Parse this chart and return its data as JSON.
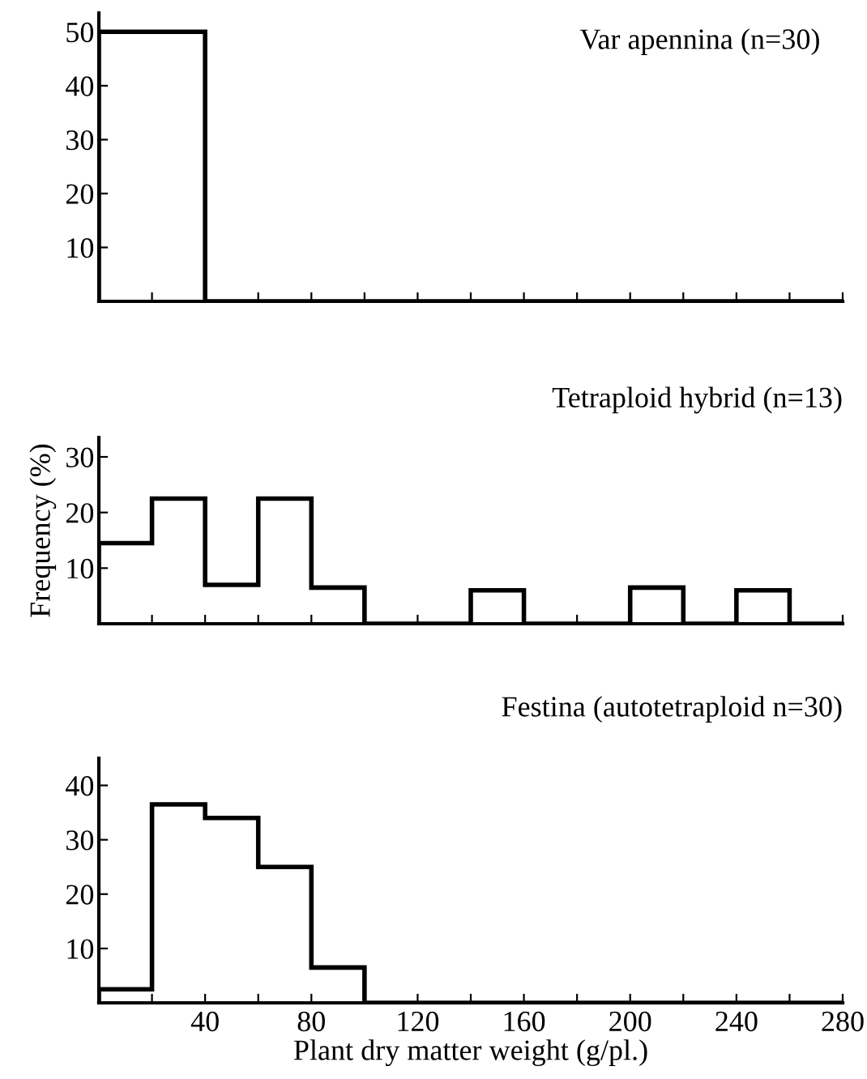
{
  "chart_data": [
    {
      "type": "histogram",
      "title": "Var apennina (n=30)",
      "bins": [
        0,
        20,
        40,
        60,
        80,
        100,
        120,
        140,
        160,
        180,
        200,
        220,
        240,
        260,
        280
      ],
      "values": [
        50,
        50,
        0,
        0,
        0,
        0,
        0,
        0,
        0,
        0,
        0,
        0,
        0,
        0
      ],
      "color": "#000000",
      "xlim": [
        0,
        280
      ],
      "ylim": [
        0,
        53.5
      ],
      "yticks": [
        10,
        20,
        30,
        40,
        50
      ],
      "xticks": [
        {
          "value": 20,
          "label": null
        },
        {
          "value": 40,
          "label": null
        },
        {
          "value": 60,
          "label": null
        },
        {
          "value": 80,
          "label": null
        },
        {
          "value": 100,
          "label": null
        },
        {
          "value": 120,
          "label": null
        },
        {
          "value": 140,
          "label": null
        },
        {
          "value": 160,
          "label": null
        },
        {
          "value": 180,
          "label": null
        },
        {
          "value": 200,
          "label": null
        },
        {
          "value": 220,
          "label": null
        },
        {
          "value": 240,
          "label": null
        },
        {
          "value": 260,
          "label": null
        },
        {
          "value": 280,
          "label": null
        }
      ],
      "tick_labels": "y"
    },
    {
      "type": "histogram",
      "title": "Tetraploid hybrid (n=13)",
      "ylabel": "Frequency (%)",
      "bins": [
        0,
        20,
        40,
        60,
        80,
        100,
        120,
        140,
        160,
        180,
        200,
        220,
        240,
        260,
        280
      ],
      "values": [
        14.5,
        22.5,
        7,
        22.5,
        6.5,
        0,
        0,
        6,
        0,
        0,
        6.5,
        0,
        6,
        0
      ],
      "color": "#000000",
      "xlim": [
        0,
        280
      ],
      "ylim": [
        0,
        33.5
      ],
      "yticks": [
        10,
        20,
        30
      ],
      "xticks": [
        {
          "value": 20,
          "label": null
        },
        {
          "value": 40,
          "label": null
        },
        {
          "value": 60,
          "label": null
        },
        {
          "value": 80,
          "label": null
        },
        {
          "value": 100,
          "label": null
        },
        {
          "value": 120,
          "label": null
        },
        {
          "value": 140,
          "label": null
        },
        {
          "value": 160,
          "label": null
        },
        {
          "value": 180,
          "label": null
        },
        {
          "value": 200,
          "label": null
        },
        {
          "value": 220,
          "label": null
        },
        {
          "value": 240,
          "label": null
        },
        {
          "value": 260,
          "label": null
        },
        {
          "value": 280,
          "label": null
        }
      ],
      "tick_labels": "y"
    },
    {
      "type": "histogram",
      "title": "Festina (autotetraploid n=30)",
      "xlabel": "Plant dry matter weight (g/pl.)",
      "bins": [
        0,
        20,
        40,
        60,
        80,
        100,
        120,
        140,
        160,
        180,
        200,
        220,
        240,
        260,
        280
      ],
      "values": [
        2.5,
        36.5,
        34,
        25,
        6.5,
        0,
        0,
        0,
        0,
        0,
        0,
        0,
        0,
        0
      ],
      "color": "#000000",
      "xlim": [
        0,
        280
      ],
      "ylim": [
        0,
        45
      ],
      "yticks": [
        10,
        20,
        30,
        40
      ],
      "xticks": [
        {
          "value": 20,
          "label": null
        },
        40,
        {
          "value": 60,
          "label": null
        },
        80,
        {
          "value": 100,
          "label": null
        },
        120,
        {
          "value": 140,
          "label": null
        },
        160,
        {
          "value": 180,
          "label": null
        },
        200,
        {
          "value": 220,
          "label": null
        },
        240,
        {
          "value": 260,
          "label": null
        },
        280
      ]
    }
  ]
}
